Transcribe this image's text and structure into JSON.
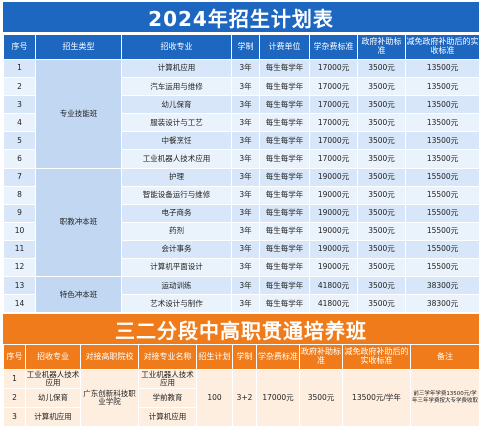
{
  "title": "2024年招生计划表",
  "headers": [
    "序号",
    "招生类型",
    "招收专业",
    "学制",
    "计费单位",
    "学杂费标准",
    "政府补助标准",
    "减免政府补助后的实收标准"
  ],
  "rows": [
    {
      "no": "1",
      "major": "计算机应用",
      "years": "3年",
      "unit": "每生每学年",
      "fee": "17000元",
      "subsidy": "3500元",
      "net": "13500元"
    },
    {
      "no": "2",
      "major": "汽车运用与维修",
      "years": "3年",
      "unit": "每生每学年",
      "fee": "17000元",
      "subsidy": "3500元",
      "net": "13500元"
    },
    {
      "no": "3",
      "major": "幼儿保育",
      "years": "3年",
      "unit": "每生每学年",
      "fee": "17000元",
      "subsidy": "3500元",
      "net": "13500元"
    },
    {
      "no": "4",
      "major": "服装设计与工艺",
      "years": "3年",
      "unit": "每生每学年",
      "fee": "17000元",
      "subsidy": "3500元",
      "net": "13500元"
    },
    {
      "no": "5",
      "major": "中餐烹饪",
      "years": "3年",
      "unit": "每生每学年",
      "fee": "17000元",
      "subsidy": "3500元",
      "net": "13500元"
    },
    {
      "no": "6",
      "major": "工业机器人技术应用",
      "years": "3年",
      "unit": "每生每学年",
      "fee": "17000元",
      "subsidy": "3500元",
      "net": "13500元"
    },
    {
      "no": "7",
      "major": "护理",
      "years": "3年",
      "unit": "每生每学年",
      "fee": "19000元",
      "subsidy": "3500元",
      "net": "15500元"
    },
    {
      "no": "8",
      "major": "智能设备运行与维修",
      "years": "3年",
      "unit": "每生每学年",
      "fee": "19000元",
      "subsidy": "3500元",
      "net": "15500元"
    },
    {
      "no": "9",
      "major": "电子商务",
      "years": "3年",
      "unit": "每生每学年",
      "fee": "19000元",
      "subsidy": "3500元",
      "net": "15500元"
    },
    {
      "no": "10",
      "major": "药剂",
      "years": "3年",
      "unit": "每生每学年",
      "fee": "19000元",
      "subsidy": "3500元",
      "net": "15500元"
    },
    {
      "no": "11",
      "major": "会计事务",
      "years": "3年",
      "unit": "每生每学年",
      "fee": "19000元",
      "subsidy": "3500元",
      "net": "15500元"
    },
    {
      "no": "12",
      "major": "计算机平面设计",
      "years": "3年",
      "unit": "每生每学年",
      "fee": "19000元",
      "subsidy": "3500元",
      "net": "15500元"
    },
    {
      "no": "13",
      "major": "运动训练",
      "years": "3年",
      "unit": "每生每学年",
      "fee": "41800元",
      "subsidy": "3500元",
      "net": "38300元"
    },
    {
      "no": "14",
      "major": "艺术设计与制作",
      "years": "3年",
      "unit": "每生每学年",
      "fee": "41800元",
      "subsidy": "3500元",
      "net": "38300元"
    }
  ],
  "groups": [
    "专业技能班",
    "职教冲本班",
    "特色冲本班"
  ],
  "section2": {
    "title": "三二分段中高职贯通培养班",
    "headers": [
      "序号",
      "招收专业",
      "对接高职院校",
      "对接专业名称",
      "招生计划",
      "学制",
      "学杂费标准",
      "政府补助标准",
      "减免政府补助后的实收标准",
      "备注"
    ],
    "rows": [
      {
        "no": "1",
        "major": "工业机器人技术应用",
        "partner_major": "工业机器人技术应用"
      },
      {
        "no": "2",
        "major": "幼儿保育",
        "partner_major": "学前教育"
      },
      {
        "no": "3",
        "major": "计算机应用",
        "partner_major": "计算机应用"
      }
    ],
    "college": "广东创新科技职业学院",
    "plan": "100",
    "years": "3+2",
    "fee": "17000元",
    "subsidy": "3500元",
    "net": "13500元/学年",
    "note": "前三学年学费13500元/学年三年学费按大专学费收取"
  }
}
